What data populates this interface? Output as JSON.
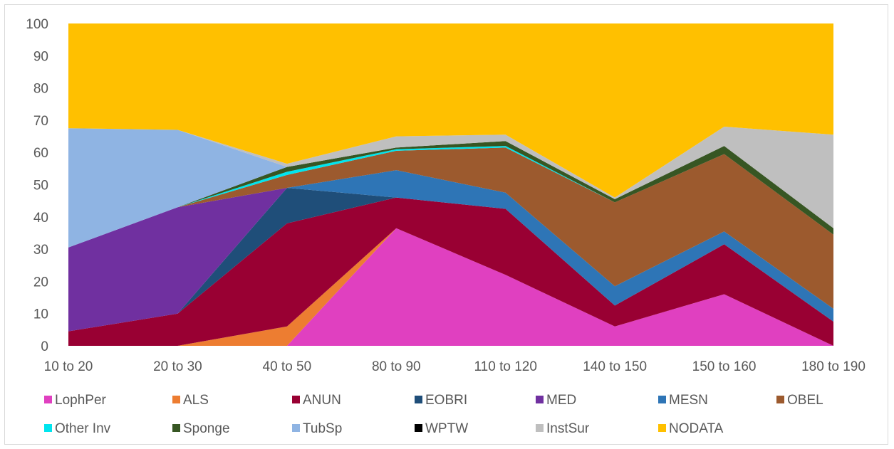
{
  "chart_data": {
    "type": "area",
    "stacked": true,
    "categories": [
      "10 to 20",
      "20 to 30",
      "40 to 50",
      "80 to 90",
      "110 to 120",
      "140 to 150",
      "150 to 160",
      "180 to 190"
    ],
    "ylim": [
      0,
      100
    ],
    "yticks": [
      "0",
      "10",
      "20",
      "30",
      "40",
      "50",
      "60",
      "70",
      "80",
      "90",
      "100"
    ],
    "grid": false,
    "legend_position": "bottom",
    "series": [
      {
        "name": "LophPer",
        "color": "#e040c0",
        "values": [
          0,
          0,
          0,
          36.5,
          22,
          6,
          16,
          0
        ]
      },
      {
        "name": "ALS",
        "color": "#ed7d31",
        "values": [
          0,
          0,
          6,
          0,
          0,
          0,
          0,
          0
        ]
      },
      {
        "name": "ANUN",
        "color": "#990033",
        "values": [
          4.5,
          10,
          32,
          9.5,
          20.5,
          6.5,
          15.5,
          7.5
        ]
      },
      {
        "name": "EOBRI",
        "color": "#1f4e79",
        "values": [
          0,
          0,
          11,
          0,
          0,
          0,
          0,
          0
        ]
      },
      {
        "name": "MED",
        "color": "#7030a0",
        "values": [
          26,
          33,
          0,
          0,
          0,
          0,
          0,
          0
        ]
      },
      {
        "name": "MESN",
        "color": "#2e75b6",
        "values": [
          0,
          0,
          0,
          8.5,
          5,
          6,
          4,
          4
        ]
      },
      {
        "name": "OBEL",
        "color": "#9c5a2e",
        "values": [
          0,
          0,
          4,
          6,
          14,
          26,
          24,
          23
        ]
      },
      {
        "name": "Other Inv",
        "color": "#00e5ee",
        "values": [
          0,
          0,
          1,
          0.5,
          0.5,
          0,
          0,
          0
        ]
      },
      {
        "name": "Sponge",
        "color": "#375623",
        "values": [
          0,
          0,
          1.5,
          0.5,
          1.5,
          1,
          2.5,
          2
        ]
      },
      {
        "name": "TubSp",
        "color": "#8fb4e3",
        "values": [
          37,
          24,
          0,
          0,
          0,
          0,
          0,
          0
        ]
      },
      {
        "name": "WPTW",
        "color": "#000000",
        "values": [
          0,
          0,
          0,
          0,
          0,
          0,
          0,
          0
        ]
      },
      {
        "name": "InstSur",
        "color": "#bfbfbf",
        "values": [
          0,
          0,
          1,
          3.5,
          2,
          0.5,
          6,
          29
        ]
      },
      {
        "name": "NODATA",
        "color": "#ffc000",
        "values": [
          32.5,
          33,
          43.5,
          35,
          34.5,
          54,
          32,
          34.5
        ]
      }
    ]
  }
}
